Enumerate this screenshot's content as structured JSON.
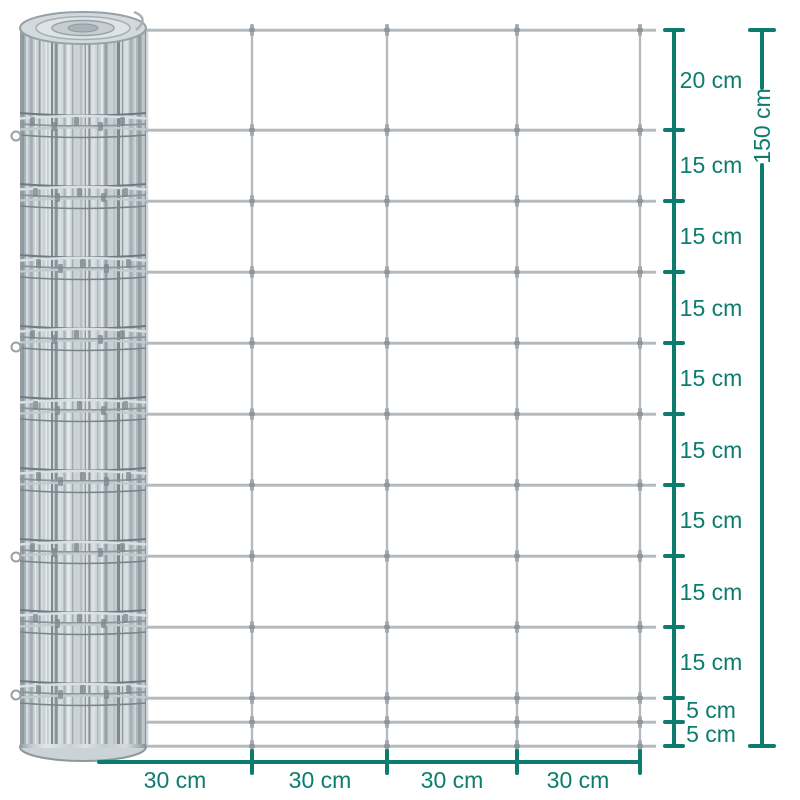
{
  "colors": {
    "accent": "#0d7c6e",
    "wire": "#b5babe",
    "wire_dark": "#9aa2a7"
  },
  "vertical_dimension": {
    "total_label": "150 cm",
    "segments": [
      "20 cm",
      "15 cm",
      "15 cm",
      "15 cm",
      "15 cm",
      "15 cm",
      "15 cm",
      "15 cm",
      "15 cm",
      "5 cm",
      "5 cm"
    ]
  },
  "horizontal_dimension": {
    "segments": [
      "30 cm",
      "30 cm",
      "30 cm",
      "30 cm"
    ]
  },
  "measurements": {
    "total_height_cm": 150,
    "vertical_spacings_cm": [
      20,
      15,
      15,
      15,
      15,
      15,
      15,
      15,
      15,
      5,
      5
    ],
    "horizontal_spacing_cm": 30,
    "horizontal_segments_count": 4
  }
}
